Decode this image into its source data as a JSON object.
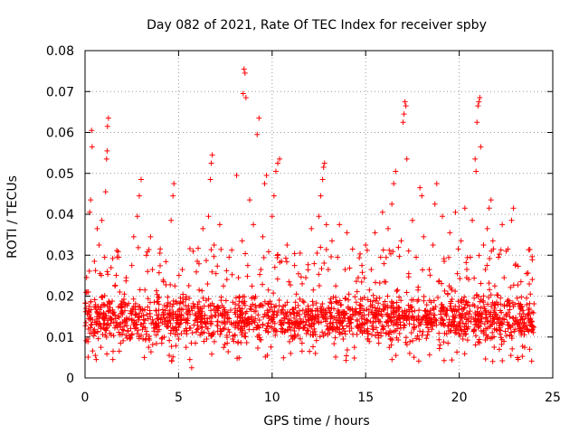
{
  "chart_data": {
    "type": "scatter",
    "title": "Day 082 of 2021, Rate Of TEC Index for receiver spby",
    "xlabel": "GPS time / hours",
    "ylabel": "ROTI / TECUs",
    "xlim": [
      0,
      25
    ],
    "ylim": [
      0,
      0.08
    ],
    "xticks": [
      0,
      5,
      10,
      15,
      20,
      25
    ],
    "xtick_labels": [
      "0",
      "5",
      "10",
      "15",
      "20",
      "25"
    ],
    "yticks": [
      0,
      0.01,
      0.02,
      0.03,
      0.04,
      0.05,
      0.06,
      0.07,
      0.08
    ],
    "ytick_labels": [
      "0",
      "0.01",
      "0.02",
      "0.03",
      "0.04",
      "0.05",
      "0.06",
      "0.07",
      "0.08"
    ],
    "grid": true,
    "marker": "+",
    "color": "#ff0000",
    "series": [
      {
        "name": "ROTI",
        "points": [
          [
            0.05,
            0.0135
          ],
          [
            0.1,
            0.021
          ],
          [
            0.15,
            0.0095
          ],
          [
            0.2,
            0.0165
          ],
          [
            0.25,
            0.0405
          ],
          [
            0.3,
            0.0435
          ],
          [
            0.35,
            0.0605
          ],
          [
            0.38,
            0.0565
          ],
          [
            0.45,
            0.0115
          ],
          [
            0.5,
            0.0285
          ],
          [
            0.55,
            0.0055
          ],
          [
            0.6,
            0.0045
          ],
          [
            0.65,
            0.0365
          ],
          [
            0.7,
            0.0175
          ],
          [
            0.75,
            0.0325
          ],
          [
            0.8,
            0.0255
          ],
          [
            0.85,
            0.0075
          ],
          [
            0.9,
            0.0385
          ],
          [
            1.0,
            0.0145
          ],
          [
            1.05,
            0.0295
          ],
          [
            1.1,
            0.0455
          ],
          [
            1.15,
            0.0535
          ],
          [
            1.18,
            0.0555
          ],
          [
            1.2,
            0.0615
          ],
          [
            1.25,
            0.0635
          ],
          [
            1.3,
            0.0185
          ],
          [
            1.4,
            0.0105
          ],
          [
            1.5,
            0.0065
          ],
          [
            1.6,
            0.0225
          ],
          [
            1.7,
            0.0135
          ],
          [
            1.8,
            0.0295
          ],
          [
            1.9,
            0.0085
          ],
          [
            2.0,
            0.0155
          ],
          [
            2.1,
            0.0205
          ],
          [
            2.2,
            0.0245
          ],
          [
            2.3,
            0.0115
          ],
          [
            2.4,
            0.0095
          ],
          [
            2.5,
            0.0275
          ],
          [
            2.6,
            0.0345
          ],
          [
            2.7,
            0.0175
          ],
          [
            2.8,
            0.0395
          ],
          [
            2.9,
            0.0445
          ],
          [
            3.0,
            0.0485
          ],
          [
            3.1,
            0.0125
          ],
          [
            3.2,
            0.0215
          ],
          [
            3.3,
            0.0155
          ],
          [
            3.4,
            0.0075
          ],
          [
            3.5,
            0.0345
          ],
          [
            3.6,
            0.0265
          ],
          [
            3.7,
            0.0185
          ],
          [
            3.8,
            0.0105
          ],
          [
            3.9,
            0.0145
          ],
          [
            4.0,
            0.0305
          ],
          [
            4.1,
            0.0085
          ],
          [
            4.2,
            0.0235
          ],
          [
            4.3,
            0.0165
          ],
          [
            4.4,
            0.0125
          ],
          [
            4.5,
            0.0055
          ],
          [
            4.6,
            0.0385
          ],
          [
            4.7,
            0.0445
          ],
          [
            4.75,
            0.0475
          ],
          [
            4.8,
            0.0225
          ],
          [
            4.9,
            0.0135
          ],
          [
            5.0,
            0.0095
          ],
          [
            5.1,
            0.0195
          ],
          [
            5.2,
            0.0265
          ],
          [
            5.3,
            0.0115
          ],
          [
            5.4,
            0.0075
          ],
          [
            5.5,
            0.0155
          ],
          [
            5.6,
            0.0045
          ],
          [
            5.7,
            0.0025
          ],
          [
            5.8,
            0.0175
          ],
          [
            5.9,
            0.0085
          ],
          [
            6.0,
            0.0285
          ],
          [
            6.1,
            0.0215
          ],
          [
            6.2,
            0.0125
          ],
          [
            6.3,
            0.0365
          ],
          [
            6.4,
            0.0145
          ],
          [
            6.5,
            0.0095
          ],
          [
            6.6,
            0.0395
          ],
          [
            6.7,
            0.0485
          ],
          [
            6.75,
            0.0525
          ],
          [
            6.8,
            0.0545
          ],
          [
            6.9,
            0.0325
          ],
          [
            7.0,
            0.0255
          ],
          [
            7.1,
            0.0175
          ],
          [
            7.2,
            0.0375
          ],
          [
            7.3,
            0.0115
          ],
          [
            7.4,
            0.0225
          ],
          [
            7.5,
            0.0155
          ],
          [
            7.6,
            0.0085
          ],
          [
            7.7,
            0.0295
          ],
          [
            7.8,
            0.0135
          ],
          [
            7.9,
            0.0185
          ],
          [
            8.0,
            0.0105
          ],
          [
            8.1,
            0.0495
          ],
          [
            8.2,
            0.0245
          ],
          [
            8.3,
            0.0165
          ],
          [
            8.4,
            0.0335
          ],
          [
            8.45,
            0.0695
          ],
          [
            8.5,
            0.0755
          ],
          [
            8.55,
            0.0745
          ],
          [
            8.6,
            0.0685
          ],
          [
            8.7,
            0.0275
          ],
          [
            8.8,
            0.0435
          ],
          [
            8.9,
            0.0195
          ],
          [
            9.0,
            0.0375
          ],
          [
            9.1,
            0.0145
          ],
          [
            9.2,
            0.0595
          ],
          [
            9.3,
            0.0635
          ],
          [
            9.4,
            0.0265
          ],
          [
            9.5,
            0.0345
          ],
          [
            9.6,
            0.0475
          ],
          [
            9.7,
            0.0495
          ],
          [
            9.8,
            0.0215
          ],
          [
            9.9,
            0.0125
          ],
          [
            10.0,
            0.0395
          ],
          [
            10.1,
            0.0445
          ],
          [
            10.2,
            0.0505
          ],
          [
            10.3,
            0.0525
          ],
          [
            10.4,
            0.0535
          ],
          [
            10.5,
            0.0285
          ],
          [
            10.6,
            0.0175
          ],
          [
            10.7,
            0.0115
          ],
          [
            10.8,
            0.0325
          ],
          [
            10.9,
            0.0235
          ],
          [
            11.0,
            0.0155
          ],
          [
            11.1,
            0.0095
          ],
          [
            11.2,
            0.0275
          ],
          [
            11.3,
            0.0205
          ],
          [
            11.4,
            0.0135
          ],
          [
            11.5,
            0.0305
          ],
          [
            11.6,
            0.0085
          ],
          [
            11.7,
            0.0185
          ],
          [
            11.8,
            0.0245
          ],
          [
            11.9,
            0.0115
          ],
          [
            12.0,
            0.0065
          ],
          [
            12.1,
            0.0365
          ],
          [
            12.2,
            0.0215
          ],
          [
            12.3,
            0.0145
          ],
          [
            12.4,
            0.0305
          ],
          [
            12.5,
            0.0395
          ],
          [
            12.6,
            0.0445
          ],
          [
            12.7,
            0.0485
          ],
          [
            12.75,
            0.0515
          ],
          [
            12.8,
            0.0525
          ],
          [
            12.9,
            0.0375
          ],
          [
            13.0,
            0.0265
          ],
          [
            13.1,
            0.0185
          ],
          [
            13.2,
            0.0335
          ],
          [
            13.3,
            0.0125
          ],
          [
            13.4,
            0.0225
          ],
          [
            13.5,
            0.0295
          ],
          [
            13.6,
            0.0375
          ],
          [
            13.7,
            0.0155
          ],
          [
            13.8,
            0.0095
          ],
          [
            13.9,
            0.0265
          ],
          [
            14.0,
            0.0355
          ],
          [
            14.1,
            0.0205
          ],
          [
            14.2,
            0.0145
          ],
          [
            14.3,
            0.0315
          ],
          [
            14.4,
            0.0075
          ],
          [
            14.5,
            0.0185
          ],
          [
            14.6,
            0.0245
          ],
          [
            14.7,
            0.0115
          ],
          [
            14.8,
            0.0275
          ],
          [
            14.9,
            0.0165
          ],
          [
            15.0,
            0.0325
          ],
          [
            15.1,
            0.0095
          ],
          [
            15.2,
            0.0215
          ],
          [
            15.3,
            0.0265
          ],
          [
            15.4,
            0.0135
          ],
          [
            15.5,
            0.0355
          ],
          [
            15.6,
            0.0195
          ],
          [
            15.7,
            0.0085
          ],
          [
            15.8,
            0.0295
          ],
          [
            15.9,
            0.0405
          ],
          [
            16.0,
            0.0235
          ],
          [
            16.1,
            0.0155
          ],
          [
            16.2,
            0.0365
          ],
          [
            16.3,
            0.0115
          ],
          [
            16.4,
            0.0425
          ],
          [
            16.5,
            0.0475
          ],
          [
            16.6,
            0.0505
          ],
          [
            16.7,
            0.0215
          ],
          [
            16.8,
            0.0145
          ],
          [
            16.9,
            0.0335
          ],
          [
            17.0,
            0.0625
          ],
          [
            17.05,
            0.0645
          ],
          [
            17.1,
            0.0675
          ],
          [
            17.15,
            0.0665
          ],
          [
            17.2,
            0.0535
          ],
          [
            17.3,
            0.0255
          ],
          [
            17.4,
            0.0175
          ],
          [
            17.5,
            0.0385
          ],
          [
            17.6,
            0.0125
          ],
          [
            17.7,
            0.0295
          ],
          [
            17.8,
            0.0215
          ],
          [
            17.9,
            0.0465
          ],
          [
            18.0,
            0.0445
          ],
          [
            18.1,
            0.0345
          ],
          [
            18.2,
            0.0165
          ],
          [
            18.3,
            0.0105
          ],
          [
            18.4,
            0.0265
          ],
          [
            18.5,
            0.0185
          ],
          [
            18.6,
            0.0325
          ],
          [
            18.7,
            0.0425
          ],
          [
            18.8,
            0.0475
          ],
          [
            18.9,
            0.0235
          ],
          [
            19.0,
            0.0135
          ],
          [
            19.1,
            0.0395
          ],
          [
            19.2,
            0.0285
          ],
          [
            19.3,
            0.0155
          ],
          [
            19.4,
            0.0085
          ],
          [
            19.5,
            0.0355
          ],
          [
            19.6,
            0.0215
          ],
          [
            19.7,
            0.0125
          ],
          [
            19.8,
            0.0405
          ],
          [
            19.9,
            0.0255
          ],
          [
            20.0,
            0.0175
          ],
          [
            20.1,
            0.0335
          ],
          [
            20.2,
            0.0095
          ],
          [
            20.3,
            0.0415
          ],
          [
            20.4,
            0.0245
          ],
          [
            20.5,
            0.0145
          ],
          [
            20.6,
            0.0295
          ],
          [
            20.7,
            0.0385
          ],
          [
            20.8,
            0.0195
          ],
          [
            20.85,
            0.0535
          ],
          [
            20.9,
            0.0505
          ],
          [
            20.95,
            0.0625
          ],
          [
            21.0,
            0.0665
          ],
          [
            21.05,
            0.0675
          ],
          [
            21.1,
            0.0685
          ],
          [
            21.15,
            0.0565
          ],
          [
            21.3,
            0.0325
          ],
          [
            21.4,
            0.0265
          ],
          [
            21.5,
            0.0365
          ],
          [
            21.6,
            0.0415
          ],
          [
            21.7,
            0.0435
          ],
          [
            21.8,
            0.0335
          ],
          [
            21.9,
            0.0225
          ],
          [
            22.0,
            0.0185
          ],
          [
            22.1,
            0.0295
          ],
          [
            22.2,
            0.0135
          ],
          [
            22.3,
            0.0375
          ],
          [
            22.4,
            0.0245
          ],
          [
            22.5,
            0.0155
          ],
          [
            22.6,
            0.0315
          ],
          [
            22.7,
            0.0105
          ],
          [
            22.8,
            0.0385
          ],
          [
            22.9,
            0.0415
          ],
          [
            23.0,
            0.0275
          ],
          [
            23.1,
            0.0195
          ],
          [
            23.2,
            0.0115
          ],
          [
            23.3,
            0.0235
          ],
          [
            23.4,
            0.0165
          ],
          [
            23.5,
            0.0075
          ],
          [
            23.6,
            0.0255
          ],
          [
            23.7,
            0.0145
          ],
          [
            23.8,
            0.0205
          ],
          [
            23.9,
            0.0125
          ]
        ]
      }
    ],
    "baseline_band": {
      "x_range": [
        0,
        24
      ],
      "typical_range": [
        0.007,
        0.022
      ],
      "extended_range": [
        0.004,
        0.032
      ],
      "point_count": 1800
    }
  }
}
